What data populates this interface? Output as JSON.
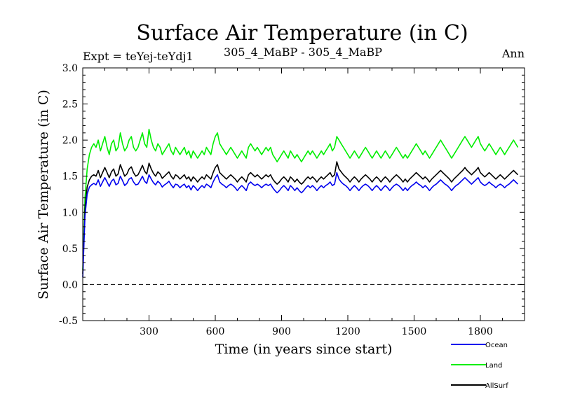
{
  "chart_data": {
    "type": "line",
    "title": "Surface Air Temperature (in C)",
    "subtitle_left": "Expt = teYej-teYdj1",
    "subtitle_center": "305_4_MaBP - 305_4_MaBP",
    "subtitle_right": "Ann",
    "xlabel": "Time (in years since start)",
    "ylabel": "Surface Air Temperature (in C)",
    "xlim": [
      0,
      2000
    ],
    "ylim": [
      -0.5,
      3.0
    ],
    "xticks": [
      300,
      600,
      900,
      1200,
      1500,
      1800
    ],
    "xtick_labels": [
      "300",
      "600",
      "900",
      "1200",
      "1500",
      "1800"
    ],
    "yticks": [
      -0.5,
      0.0,
      0.5,
      1.0,
      1.5,
      2.0,
      2.5,
      3.0
    ],
    "ytick_labels": [
      "-0.5",
      "0.0",
      "0.5",
      "1.0",
      "1.5",
      "2.0",
      "2.5",
      "3.0"
    ],
    "reference_line": {
      "y": 0.0,
      "style": "dashed"
    },
    "legend_position": "bottom-right",
    "series": [
      {
        "name": "Land",
        "color": "#00ee00",
        "sample_every_years": 10,
        "values": [
          0.2,
          1.2,
          1.6,
          1.8,
          1.9,
          1.95,
          1.9,
          2.0,
          1.85,
          1.95,
          2.05,
          1.9,
          1.8,
          1.95,
          2.0,
          1.85,
          1.9,
          2.1,
          1.95,
          1.85,
          1.9,
          2.0,
          2.05,
          1.9,
          1.85,
          1.9,
          2.0,
          2.1,
          1.95,
          1.9,
          2.15,
          2.0,
          1.9,
          1.85,
          1.95,
          1.9,
          1.8,
          1.85,
          1.9,
          1.95,
          1.85,
          1.8,
          1.9,
          1.85,
          1.8,
          1.85,
          1.9,
          1.8,
          1.85,
          1.75,
          1.85,
          1.8,
          1.75,
          1.8,
          1.85,
          1.8,
          1.9,
          1.85,
          1.8,
          1.95,
          2.05,
          2.1,
          1.95,
          1.9,
          1.85,
          1.8,
          1.85,
          1.9,
          1.85,
          1.8,
          1.75,
          1.8,
          1.85,
          1.8,
          1.75,
          1.9,
          1.95,
          1.9,
          1.85,
          1.9,
          1.85,
          1.8,
          1.85,
          1.9,
          1.85,
          1.9,
          1.8,
          1.75,
          1.7,
          1.75,
          1.8,
          1.85,
          1.8,
          1.75,
          1.85,
          1.8,
          1.75,
          1.8,
          1.75,
          1.7,
          1.75,
          1.8,
          1.85,
          1.8,
          1.85,
          1.8,
          1.75,
          1.8,
          1.85,
          1.8,
          1.85,
          1.9,
          1.95,
          1.85,
          1.9,
          2.05,
          2.0,
          1.95,
          1.9,
          1.85,
          1.8,
          1.75,
          1.8,
          1.85,
          1.8,
          1.75,
          1.8,
          1.85,
          1.9,
          1.85,
          1.8,
          1.75,
          1.8,
          1.85,
          1.8,
          1.75,
          1.8,
          1.85,
          1.8,
          1.75,
          1.8,
          1.85,
          1.9,
          1.85,
          1.8,
          1.75,
          1.8,
          1.75,
          1.8,
          1.85,
          1.9,
          1.95,
          1.9,
          1.85,
          1.8,
          1.85,
          1.8,
          1.75,
          1.8,
          1.85,
          1.9,
          1.95,
          2.0,
          1.95,
          1.9,
          1.85,
          1.8,
          1.75,
          1.8,
          1.85,
          1.9,
          1.95,
          2.0,
          2.05,
          2.0,
          1.95,
          1.9,
          1.95,
          2.0,
          2.05,
          1.95,
          1.9,
          1.85,
          1.9,
          1.95,
          1.9,
          1.85,
          1.8,
          1.85,
          1.9,
          1.85,
          1.8,
          1.85,
          1.9,
          1.95,
          2.0,
          1.95,
          1.9
        ]
      },
      {
        "name": "AllSurf",
        "color": "#000000",
        "sample_every_years": 10,
        "values": [
          0.15,
          1.05,
          1.35,
          1.45,
          1.5,
          1.52,
          1.5,
          1.58,
          1.48,
          1.55,
          1.62,
          1.55,
          1.48,
          1.56,
          1.6,
          1.5,
          1.53,
          1.66,
          1.58,
          1.5,
          1.53,
          1.6,
          1.63,
          1.55,
          1.5,
          1.52,
          1.58,
          1.65,
          1.57,
          1.53,
          1.68,
          1.6,
          1.54,
          1.5,
          1.56,
          1.53,
          1.47,
          1.5,
          1.53,
          1.56,
          1.5,
          1.46,
          1.52,
          1.5,
          1.46,
          1.49,
          1.52,
          1.46,
          1.49,
          1.43,
          1.49,
          1.46,
          1.42,
          1.46,
          1.49,
          1.46,
          1.52,
          1.49,
          1.46,
          1.55,
          1.62,
          1.66,
          1.55,
          1.52,
          1.49,
          1.46,
          1.49,
          1.52,
          1.49,
          1.46,
          1.42,
          1.46,
          1.49,
          1.46,
          1.42,
          1.52,
          1.55,
          1.52,
          1.49,
          1.52,
          1.49,
          1.46,
          1.49,
          1.52,
          1.49,
          1.52,
          1.46,
          1.42,
          1.39,
          1.42,
          1.46,
          1.49,
          1.46,
          1.42,
          1.49,
          1.46,
          1.42,
          1.46,
          1.42,
          1.39,
          1.42,
          1.46,
          1.49,
          1.46,
          1.49,
          1.46,
          1.42,
          1.46,
          1.49,
          1.46,
          1.49,
          1.52,
          1.55,
          1.49,
          1.52,
          1.7,
          1.6,
          1.56,
          1.52,
          1.49,
          1.46,
          1.42,
          1.46,
          1.49,
          1.46,
          1.42,
          1.46,
          1.49,
          1.52,
          1.49,
          1.46,
          1.42,
          1.46,
          1.49,
          1.46,
          1.42,
          1.46,
          1.49,
          1.46,
          1.42,
          1.46,
          1.49,
          1.52,
          1.49,
          1.46,
          1.42,
          1.46,
          1.42,
          1.46,
          1.49,
          1.52,
          1.55,
          1.52,
          1.49,
          1.46,
          1.49,
          1.46,
          1.42,
          1.46,
          1.49,
          1.52,
          1.55,
          1.58,
          1.55,
          1.52,
          1.49,
          1.46,
          1.42,
          1.46,
          1.49,
          1.52,
          1.55,
          1.58,
          1.62,
          1.58,
          1.55,
          1.52,
          1.55,
          1.58,
          1.62,
          1.55,
          1.52,
          1.49,
          1.52,
          1.55,
          1.52,
          1.49,
          1.46,
          1.49,
          1.52,
          1.49,
          1.46,
          1.49,
          1.52,
          1.55,
          1.58,
          1.55,
          1.52
        ]
      },
      {
        "name": "Ocean",
        "color": "#0000ee",
        "sample_every_years": 10,
        "values": [
          0.1,
          0.95,
          1.25,
          1.35,
          1.38,
          1.4,
          1.38,
          1.45,
          1.36,
          1.42,
          1.48,
          1.42,
          1.36,
          1.43,
          1.46,
          1.38,
          1.4,
          1.5,
          1.44,
          1.37,
          1.4,
          1.46,
          1.48,
          1.42,
          1.38,
          1.39,
          1.44,
          1.5,
          1.43,
          1.4,
          1.52,
          1.46,
          1.41,
          1.38,
          1.43,
          1.4,
          1.35,
          1.38,
          1.4,
          1.43,
          1.38,
          1.34,
          1.39,
          1.38,
          1.34,
          1.37,
          1.39,
          1.34,
          1.37,
          1.31,
          1.37,
          1.34,
          1.3,
          1.34,
          1.37,
          1.34,
          1.39,
          1.37,
          1.34,
          1.42,
          1.48,
          1.52,
          1.42,
          1.39,
          1.37,
          1.34,
          1.37,
          1.39,
          1.37,
          1.34,
          1.3,
          1.34,
          1.37,
          1.34,
          1.3,
          1.39,
          1.42,
          1.39,
          1.37,
          1.39,
          1.37,
          1.34,
          1.37,
          1.39,
          1.37,
          1.39,
          1.34,
          1.3,
          1.27,
          1.3,
          1.34,
          1.37,
          1.34,
          1.3,
          1.37,
          1.34,
          1.3,
          1.34,
          1.3,
          1.27,
          1.3,
          1.34,
          1.37,
          1.34,
          1.37,
          1.34,
          1.3,
          1.34,
          1.37,
          1.34,
          1.37,
          1.39,
          1.42,
          1.37,
          1.39,
          1.55,
          1.46,
          1.42,
          1.39,
          1.37,
          1.34,
          1.3,
          1.34,
          1.37,
          1.34,
          1.3,
          1.34,
          1.37,
          1.39,
          1.37,
          1.34,
          1.3,
          1.34,
          1.37,
          1.34,
          1.3,
          1.34,
          1.37,
          1.34,
          1.3,
          1.34,
          1.37,
          1.39,
          1.37,
          1.34,
          1.3,
          1.34,
          1.3,
          1.34,
          1.37,
          1.39,
          1.42,
          1.39,
          1.37,
          1.34,
          1.37,
          1.34,
          1.3,
          1.34,
          1.37,
          1.39,
          1.42,
          1.45,
          1.42,
          1.39,
          1.37,
          1.34,
          1.3,
          1.34,
          1.37,
          1.39,
          1.42,
          1.45,
          1.48,
          1.45,
          1.42,
          1.39,
          1.42,
          1.45,
          1.48,
          1.42,
          1.39,
          1.37,
          1.39,
          1.42,
          1.39,
          1.37,
          1.34,
          1.37,
          1.39,
          1.37,
          1.34,
          1.37,
          1.39,
          1.42,
          1.45,
          1.42,
          1.39
        ]
      }
    ],
    "legend": [
      {
        "name": "Ocean",
        "color": "#0000ee"
      },
      {
        "name": "Land",
        "color": "#00ee00"
      },
      {
        "name": "AllSurf",
        "color": "#000000"
      }
    ]
  }
}
